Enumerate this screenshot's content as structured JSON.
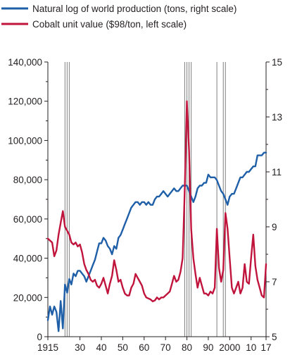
{
  "chart_data": {
    "type": "line",
    "title": "",
    "legend": {
      "placement": "top-left",
      "entries": [
        {
          "series": "log_production",
          "label": "Natural log of world production (tons, right scale)"
        },
        {
          "series": "unit_value",
          "label": "Cobalt unit value ($98/ton, left scale)"
        }
      ]
    },
    "x_axis": {
      "range": [
        1915,
        2017
      ],
      "ticks": [
        {
          "value": 1915,
          "label": "1915"
        },
        {
          "value": 1930,
          "label": "30"
        },
        {
          "value": 1940,
          "label": "40"
        },
        {
          "value": 1950,
          "label": "50"
        },
        {
          "value": 1960,
          "label": "60"
        },
        {
          "value": 1970,
          "label": "70"
        },
        {
          "value": 1980,
          "label": "80"
        },
        {
          "value": 1990,
          "label": "90"
        },
        {
          "value": 2000,
          "label": "2000"
        },
        {
          "value": 2010,
          "label": "10"
        },
        {
          "value": 2017,
          "label": "17"
        }
      ]
    },
    "y_left": {
      "range": [
        0,
        140000
      ],
      "ticks": [
        {
          "value": 0,
          "label": "0"
        },
        {
          "value": 20000,
          "label": "20,000"
        },
        {
          "value": 40000,
          "label": "40,000"
        },
        {
          "value": 60000,
          "label": "60,000"
        },
        {
          "value": 80000,
          "label": "80,000"
        },
        {
          "value": 100000,
          "label": "100,000"
        },
        {
          "value": 120000,
          "label": "120,000"
        },
        {
          "value": 140000,
          "label": "140,000"
        }
      ],
      "minor_ticks": [
        10000,
        30000,
        50000,
        70000,
        90000,
        110000,
        130000
      ]
    },
    "y_right": {
      "range": [
        5,
        15
      ],
      "ticks": [
        {
          "value": 5,
          "label": "5"
        },
        {
          "value": 7,
          "label": "7"
        },
        {
          "value": 9,
          "label": "9"
        },
        {
          "value": 11,
          "label": "11"
        },
        {
          "value": 13,
          "label": "13"
        },
        {
          "value": 15,
          "label": "15"
        }
      ],
      "minor_ticks": [
        6,
        8,
        10,
        12,
        14
      ]
    },
    "vertical_lines": [
      1923,
      1924,
      1925,
      1979,
      1980,
      1981,
      1982,
      1994,
      1997,
      1998
    ],
    "grid": false,
    "colors": {
      "log_production": "#1f5fa8",
      "unit_value": "#c0143c"
    },
    "series": [
      {
        "key": "log_production",
        "axis": "right",
        "x": [
          1915,
          1916,
          1917,
          1918,
          1919,
          1920,
          1921,
          1922,
          1923,
          1924,
          1925,
          1926,
          1927,
          1928,
          1929,
          1930,
          1931,
          1932,
          1933,
          1934,
          1935,
          1936,
          1937,
          1938,
          1939,
          1940,
          1941,
          1942,
          1943,
          1944,
          1945,
          1946,
          1947,
          1948,
          1949,
          1950,
          1951,
          1952,
          1953,
          1954,
          1955,
          1956,
          1957,
          1958,
          1959,
          1960,
          1961,
          1962,
          1963,
          1964,
          1965,
          1966,
          1967,
          1968,
          1969,
          1970,
          1971,
          1972,
          1973,
          1974,
          1975,
          1976,
          1977,
          1978,
          1979,
          1980,
          1981,
          1982,
          1983,
          1984,
          1985,
          1986,
          1987,
          1988,
          1989,
          1990,
          1991,
          1992,
          1993,
          1994,
          1995,
          1996,
          1997,
          1998,
          1999,
          2000,
          2001,
          2002,
          2003,
          2004,
          2005,
          2006,
          2007,
          2008,
          2009,
          2010,
          2011,
          2012,
          2013,
          2014,
          2015,
          2016,
          2017
        ],
        "y": [
          5.6,
          6.1,
          5.8,
          6.1,
          5.9,
          5.2,
          6.3,
          5.3,
          6.9,
          6.6,
          7.1,
          6.9,
          7.3,
          7.2,
          7.4,
          7.4,
          7.3,
          7.2,
          7.0,
          7.2,
          7.4,
          7.6,
          7.8,
          8.1,
          8.4,
          8.4,
          8.6,
          8.5,
          8.3,
          8.2,
          8.0,
          8.3,
          8.2,
          8.6,
          8.7,
          8.9,
          9.1,
          9.3,
          9.5,
          9.7,
          9.8,
          9.9,
          9.9,
          9.8,
          9.9,
          9.9,
          9.8,
          9.9,
          9.8,
          9.8,
          10.0,
          10.1,
          10.1,
          10.2,
          10.3,
          10.2,
          10.1,
          10.2,
          10.3,
          10.4,
          10.3,
          10.3,
          10.4,
          10.5,
          10.5,
          10.5,
          10.3,
          10.1,
          9.9,
          10.1,
          10.4,
          10.5,
          10.5,
          10.6,
          10.6,
          10.9,
          10.8,
          10.8,
          10.8,
          10.7,
          10.5,
          10.3,
          10.2,
          10.0,
          9.8,
          10.1,
          10.2,
          10.2,
          10.4,
          10.6,
          10.8,
          10.8,
          10.9,
          11.0,
          11.0,
          11.1,
          11.2,
          11.2,
          11.6,
          11.6,
          11.6,
          11.7,
          11.7
        ]
      },
      {
        "key": "unit_value",
        "axis": "left",
        "x": [
          1915,
          1916,
          1917,
          1918,
          1919,
          1920,
          1921,
          1922,
          1923,
          1924,
          1925,
          1926,
          1927,
          1928,
          1929,
          1930,
          1931,
          1932,
          1933,
          1934,
          1935,
          1936,
          1937,
          1938,
          1939,
          1940,
          1941,
          1942,
          1943,
          1944,
          1945,
          1946,
          1947,
          1948,
          1949,
          1950,
          1951,
          1952,
          1953,
          1954,
          1955,
          1956,
          1957,
          1958,
          1959,
          1960,
          1961,
          1962,
          1963,
          1964,
          1965,
          1966,
          1967,
          1968,
          1969,
          1970,
          1971,
          1972,
          1973,
          1974,
          1975,
          1976,
          1977,
          1978,
          1979,
          1980,
          1981,
          1982,
          1983,
          1984,
          1985,
          1986,
          1987,
          1988,
          1989,
          1990,
          1991,
          1992,
          1993,
          1994,
          1995,
          1996,
          1997,
          1998,
          1999,
          2000,
          2001,
          2002,
          2003,
          2004,
          2005,
          2006,
          2007,
          2008,
          2009,
          2010,
          2011,
          2012,
          2013,
          2014,
          2015,
          2016,
          2017
        ],
        "y": [
          50000,
          49000,
          48000,
          41000,
          44000,
          52000,
          58000,
          64000,
          56000,
          54000,
          52000,
          48000,
          47000,
          48000,
          46000,
          47000,
          43000,
          37000,
          34000,
          32000,
          29000,
          28000,
          29000,
          26000,
          25000,
          27000,
          30000,
          26000,
          22000,
          27000,
          31000,
          39000,
          34000,
          28000,
          29000,
          25000,
          22000,
          21000,
          21000,
          25000,
          27000,
          32000,
          30000,
          28000,
          26000,
          22000,
          20000,
          19500,
          19000,
          18000,
          18500,
          20000,
          19000,
          20000,
          20000,
          21000,
          22000,
          23000,
          27000,
          31000,
          28000,
          29000,
          33000,
          40000,
          75000,
          120000,
          95000,
          55000,
          40000,
          32000,
          25000,
          30000,
          26000,
          22000,
          22000,
          21000,
          23000,
          22000,
          25000,
          55000,
          35000,
          28000,
          34000,
          63000,
          55000,
          40000,
          25000,
          22000,
          25000,
          28000,
          22000,
          25000,
          37000,
          28000,
          27000,
          40000,
          52000,
          36000,
          29000,
          25000,
          21000,
          20000,
          37000
        ]
      }
    ]
  }
}
